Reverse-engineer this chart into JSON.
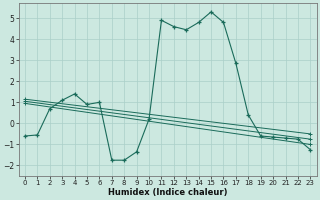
{
  "xlabel": "Humidex (Indice chaleur)",
  "background_color": "#cce8e0",
  "grid_color": "#aacfc8",
  "line_color": "#1a6b5a",
  "xlim": [
    -0.5,
    23.5
  ],
  "ylim": [
    -2.5,
    5.7
  ],
  "xticks": [
    0,
    1,
    2,
    3,
    4,
    5,
    6,
    7,
    8,
    9,
    10,
    11,
    12,
    13,
    14,
    15,
    16,
    17,
    18,
    19,
    20,
    21,
    22,
    23
  ],
  "yticks": [
    -2,
    -1,
    0,
    1,
    2,
    3,
    4,
    5
  ],
  "curve_x": [
    0,
    1,
    2,
    3,
    4,
    5,
    6,
    7,
    8,
    9,
    10,
    11,
    12,
    13,
    14,
    15,
    16,
    17,
    18,
    19,
    20,
    21,
    22,
    23
  ],
  "curve_y": [
    -0.6,
    -0.55,
    0.7,
    1.1,
    1.4,
    0.9,
    1.0,
    -1.75,
    -1.75,
    -1.35,
    0.2,
    4.9,
    4.6,
    4.45,
    4.8,
    5.3,
    4.8,
    2.85,
    0.4,
    -0.6,
    -0.65,
    -0.7,
    -0.75,
    -1.25
  ],
  "trend1_x": [
    0,
    23
  ],
  "trend1_y": [
    1.15,
    -0.5
  ],
  "trend2_x": [
    0,
    23
  ],
  "trend2_y": [
    1.05,
    -0.75
  ],
  "trend3_x": [
    0,
    23
  ],
  "trend3_y": [
    0.95,
    -1.0
  ]
}
